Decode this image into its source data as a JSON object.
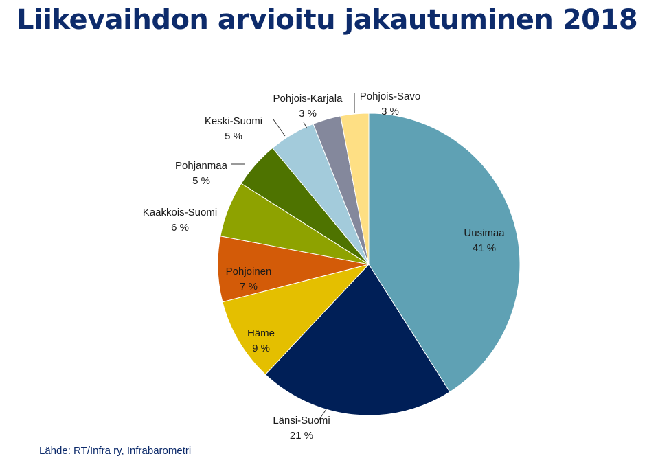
{
  "title": "Liikevaihdon arvioitu jakautuminen 2018",
  "source": "Lähde: RT/Infra ry, Infrabarometri",
  "chart_data": {
    "type": "pie",
    "slices": [
      {
        "label": "Uusimaa",
        "value": 41,
        "value_label": "41 %",
        "color": "#5fa1b4"
      },
      {
        "label": "Länsi-Suomi",
        "value": 21,
        "value_label": "21 %",
        "color": "#001f57"
      },
      {
        "label": "Häme",
        "value": 9,
        "value_label": "9 %",
        "color": "#e4bf00"
      },
      {
        "label": "Pohjoinen",
        "value": 7,
        "value_label": "7 %",
        "color": "#d35b08"
      },
      {
        "label": "Kaakkois-Suomi",
        "value": 6,
        "value_label": "6 %",
        "color": "#8ea200"
      },
      {
        "label": "Pohjanmaa",
        "value": 5,
        "value_label": "5 %",
        "color": "#4e7300"
      },
      {
        "label": "Keski-Suomi",
        "value": 5,
        "value_label": "5 %",
        "color": "#a3cbdb"
      },
      {
        "label": "Pohjois-Karjala",
        "value": 3,
        "value_label": "3 %",
        "color": "#84889c"
      },
      {
        "label": "Pohjois-Savo",
        "value": 3,
        "value_label": "3 %",
        "color": "#fedf84"
      }
    ],
    "start_angle": "12 o'clock",
    "direction": "clockwise",
    "legend": "none (data labels with leader lines)"
  }
}
